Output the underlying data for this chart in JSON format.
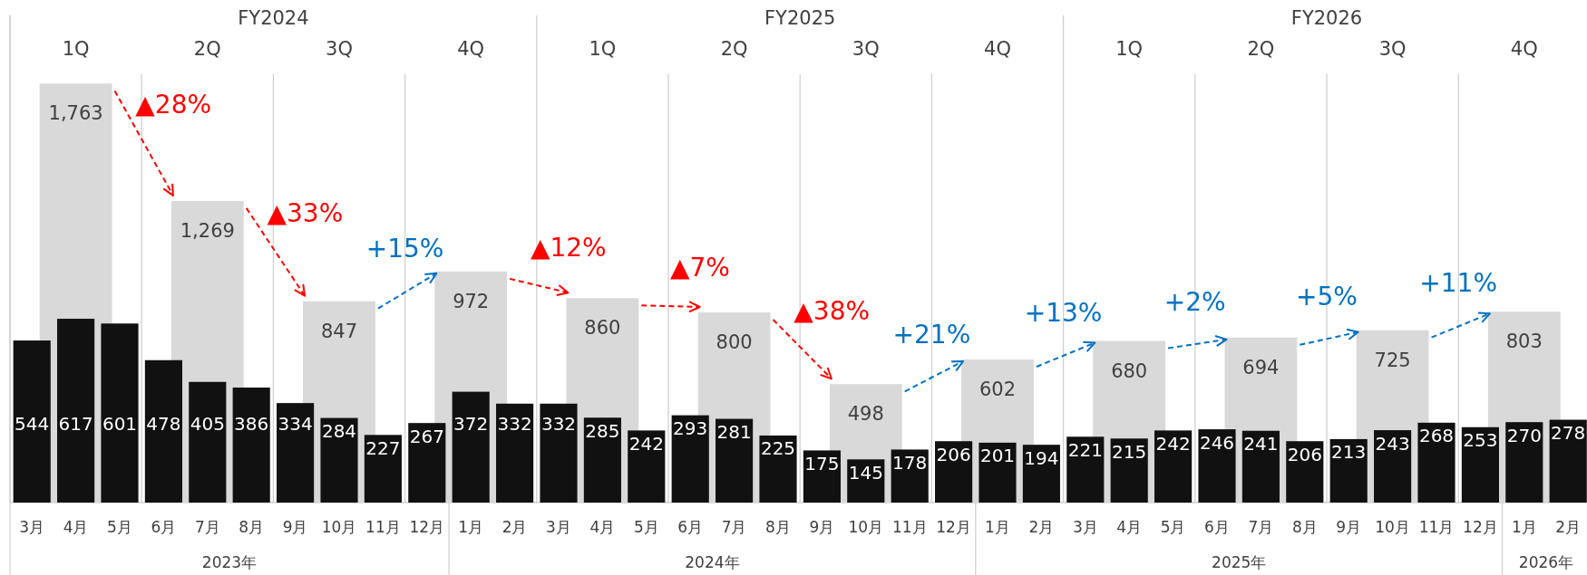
{
  "chart_data": {
    "type": "bar",
    "categories": [
      "3月",
      "4月",
      "5月",
      "6月",
      "7月",
      "8月",
      "9月",
      "10月",
      "11月",
      "12月",
      "1月",
      "2月",
      "3月",
      "4月",
      "5月",
      "6月",
      "7月",
      "8月",
      "9月",
      "10月",
      "11月",
      "12月",
      "1月",
      "2月",
      "3月",
      "4月",
      "5月",
      "6月",
      "7月",
      "8月",
      "9月",
      "10月",
      "11月",
      "12月",
      "1月",
      "2月"
    ],
    "series": [
      {
        "color": "#d9d9d9",
        "values": [
          null,
          1763,
          null,
          null,
          1269,
          null,
          null,
          847,
          null,
          null,
          972,
          null,
          null,
          860,
          null,
          null,
          800,
          null,
          null,
          498,
          null,
          null,
          602,
          null,
          null,
          680,
          null,
          null,
          694,
          null,
          null,
          725,
          null,
          null,
          803,
          null
        ],
        "value_labels": [
          null,
          "1,763",
          null,
          null,
          "1,269",
          null,
          null,
          "847",
          null,
          null,
          "972",
          null,
          null,
          "860",
          null,
          null,
          "800",
          null,
          null,
          "498",
          null,
          null,
          "602",
          null,
          null,
          "680",
          null,
          null,
          "694",
          null,
          null,
          "725",
          null,
          null,
          "803",
          null
        ]
      },
      {
        "color": "#111111",
        "axis": "y2",
        "values": [
          544,
          617,
          601,
          478,
          405,
          386,
          334,
          284,
          227,
          267,
          372,
          332,
          332,
          285,
          242,
          293,
          281,
          225,
          175,
          145,
          178,
          206,
          201,
          194,
          221,
          215,
          242,
          246,
          241,
          206,
          213,
          243,
          268,
          253,
          270,
          278
        ]
      }
    ],
    "data_labels": true,
    "annotations": [
      "FY2024",
      "FY2025",
      "FY2026",
      "1Q",
      "2Q",
      "3Q",
      "4Q",
      "1Q",
      "2Q",
      "3Q",
      "4Q",
      "1Q",
      "2Q",
      "3Q",
      "4Q",
      "2023年",
      "2024年",
      "2025年",
      "2026年",
      "▲28%",
      "▲33%",
      "+15%",
      "▲12%",
      "▲7%",
      "▲38%",
      "+21%",
      "+13%",
      "+2%",
      "+5%",
      "+11%"
    ]
  }
}
